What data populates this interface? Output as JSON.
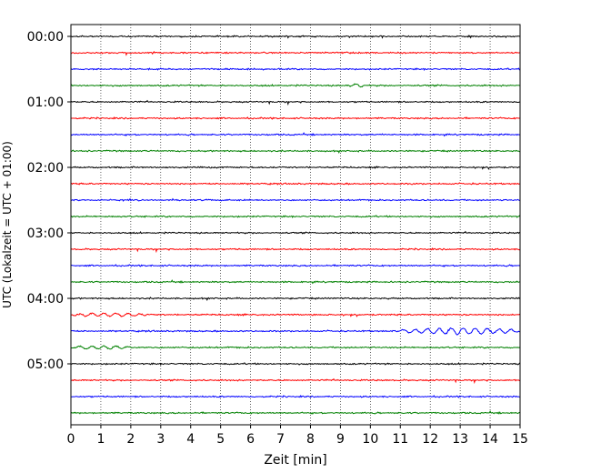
{
  "chart_data": {
    "type": "line",
    "title": "",
    "xlabel": "Zeit  [min]",
    "ylabel": "UTC (Lokalzeit = UTC + 01:00)",
    "xlim": [
      0,
      15
    ],
    "x_ticks": [
      0,
      1,
      2,
      3,
      4,
      5,
      6,
      7,
      8,
      9,
      10,
      11,
      12,
      13,
      14,
      15
    ],
    "y_time_range_hours": [
      0,
      6
    ],
    "y_ticks": [
      {
        "hour": 0,
        "label": "00:00"
      },
      {
        "hour": 1,
        "label": "01:00"
      },
      {
        "hour": 2,
        "label": "02:00"
      },
      {
        "hour": 3,
        "label": "03:00"
      },
      {
        "hour": 4,
        "label": "04:00"
      },
      {
        "hour": 5,
        "label": "05:00"
      }
    ],
    "grid": "vertical-dotted",
    "trace_interval_minutes": 15,
    "trace_colors": [
      "#000000",
      "#ff0000",
      "#0000ff",
      "#008000"
    ],
    "trace_count": 24,
    "notable_events": [
      {
        "trace_hour": 4.5,
        "x_start": 11.0,
        "x_end": 15.0,
        "description_amplitude": "large"
      },
      {
        "trace_hour": 4.25,
        "x_start": 0.0,
        "x_end": 2.5,
        "description_amplitude": "medium"
      },
      {
        "trace_hour": 4.75,
        "x_start": 0.0,
        "x_end": 2.0,
        "description_amplitude": "medium"
      },
      {
        "trace_hour": 0.75,
        "x_start": 9.3,
        "x_end": 9.8,
        "description_amplitude": "medium"
      }
    ]
  }
}
